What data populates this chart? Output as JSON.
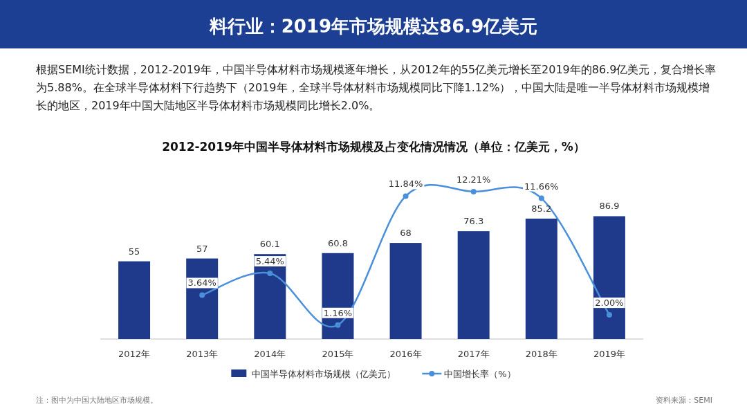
{
  "chart_data": {
    "type": "bar",
    "title": "料行业：2019年市场规模达86.9亿美元",
    "subtitle": "2012-2019年中国半导体材料市场规模及占变化情况情况（单位：亿美元，%）",
    "annotations": [
      "根据SEMI统计数据，2012-2019年，中国半导体材料市场规模逐年增长，从2012年的55亿美元增长至2019年的86.9亿美元，复合增长率为5.88%。在全球半导体材料下行趋势下（2019年，全球半导体材料市场规模同比下降1.12%），中国大陆是唯一半导体材料市场规模增长的地区，2019年中国大陆地区半导体材料市场规模同比增长2.0%。",
      "注：图中为中国大陆地区市场规模。",
      "资料来源：SEMI"
    ],
    "categories": [
      "2012年",
      "2013年",
      "2014年",
      "2015年",
      "2016年",
      "2017年",
      "2018年",
      "2019年"
    ],
    "series": [
      {
        "name": "中国半导体材料市场规模（亿美元）",
        "color": "#1f3a8a",
        "values": [
          55,
          57,
          60.1,
          60.8,
          68,
          76.3,
          85.2,
          86.9
        ],
        "value_labels": [
          "55",
          "57",
          "60.1",
          "60.8",
          "68",
          "76.3",
          "85.2",
          "86.9"
        ]
      },
      {
        "name": "中国增长率（%）",
        "type": "line",
        "axis": "y2",
        "color": "#4a8fdc",
        "values": [
          null,
          3.64,
          5.44,
          1.16,
          11.84,
          12.21,
          11.66,
          2.0
        ],
        "value_labels": [
          null,
          "3.64%",
          "5.44%",
          "1.16%",
          "11.84%",
          "12.21%",
          "11.66%",
          "2.00%"
        ]
      }
    ],
    "tick_labels": "x",
    "legend": "bottom",
    "marker": "circle"
  }
}
